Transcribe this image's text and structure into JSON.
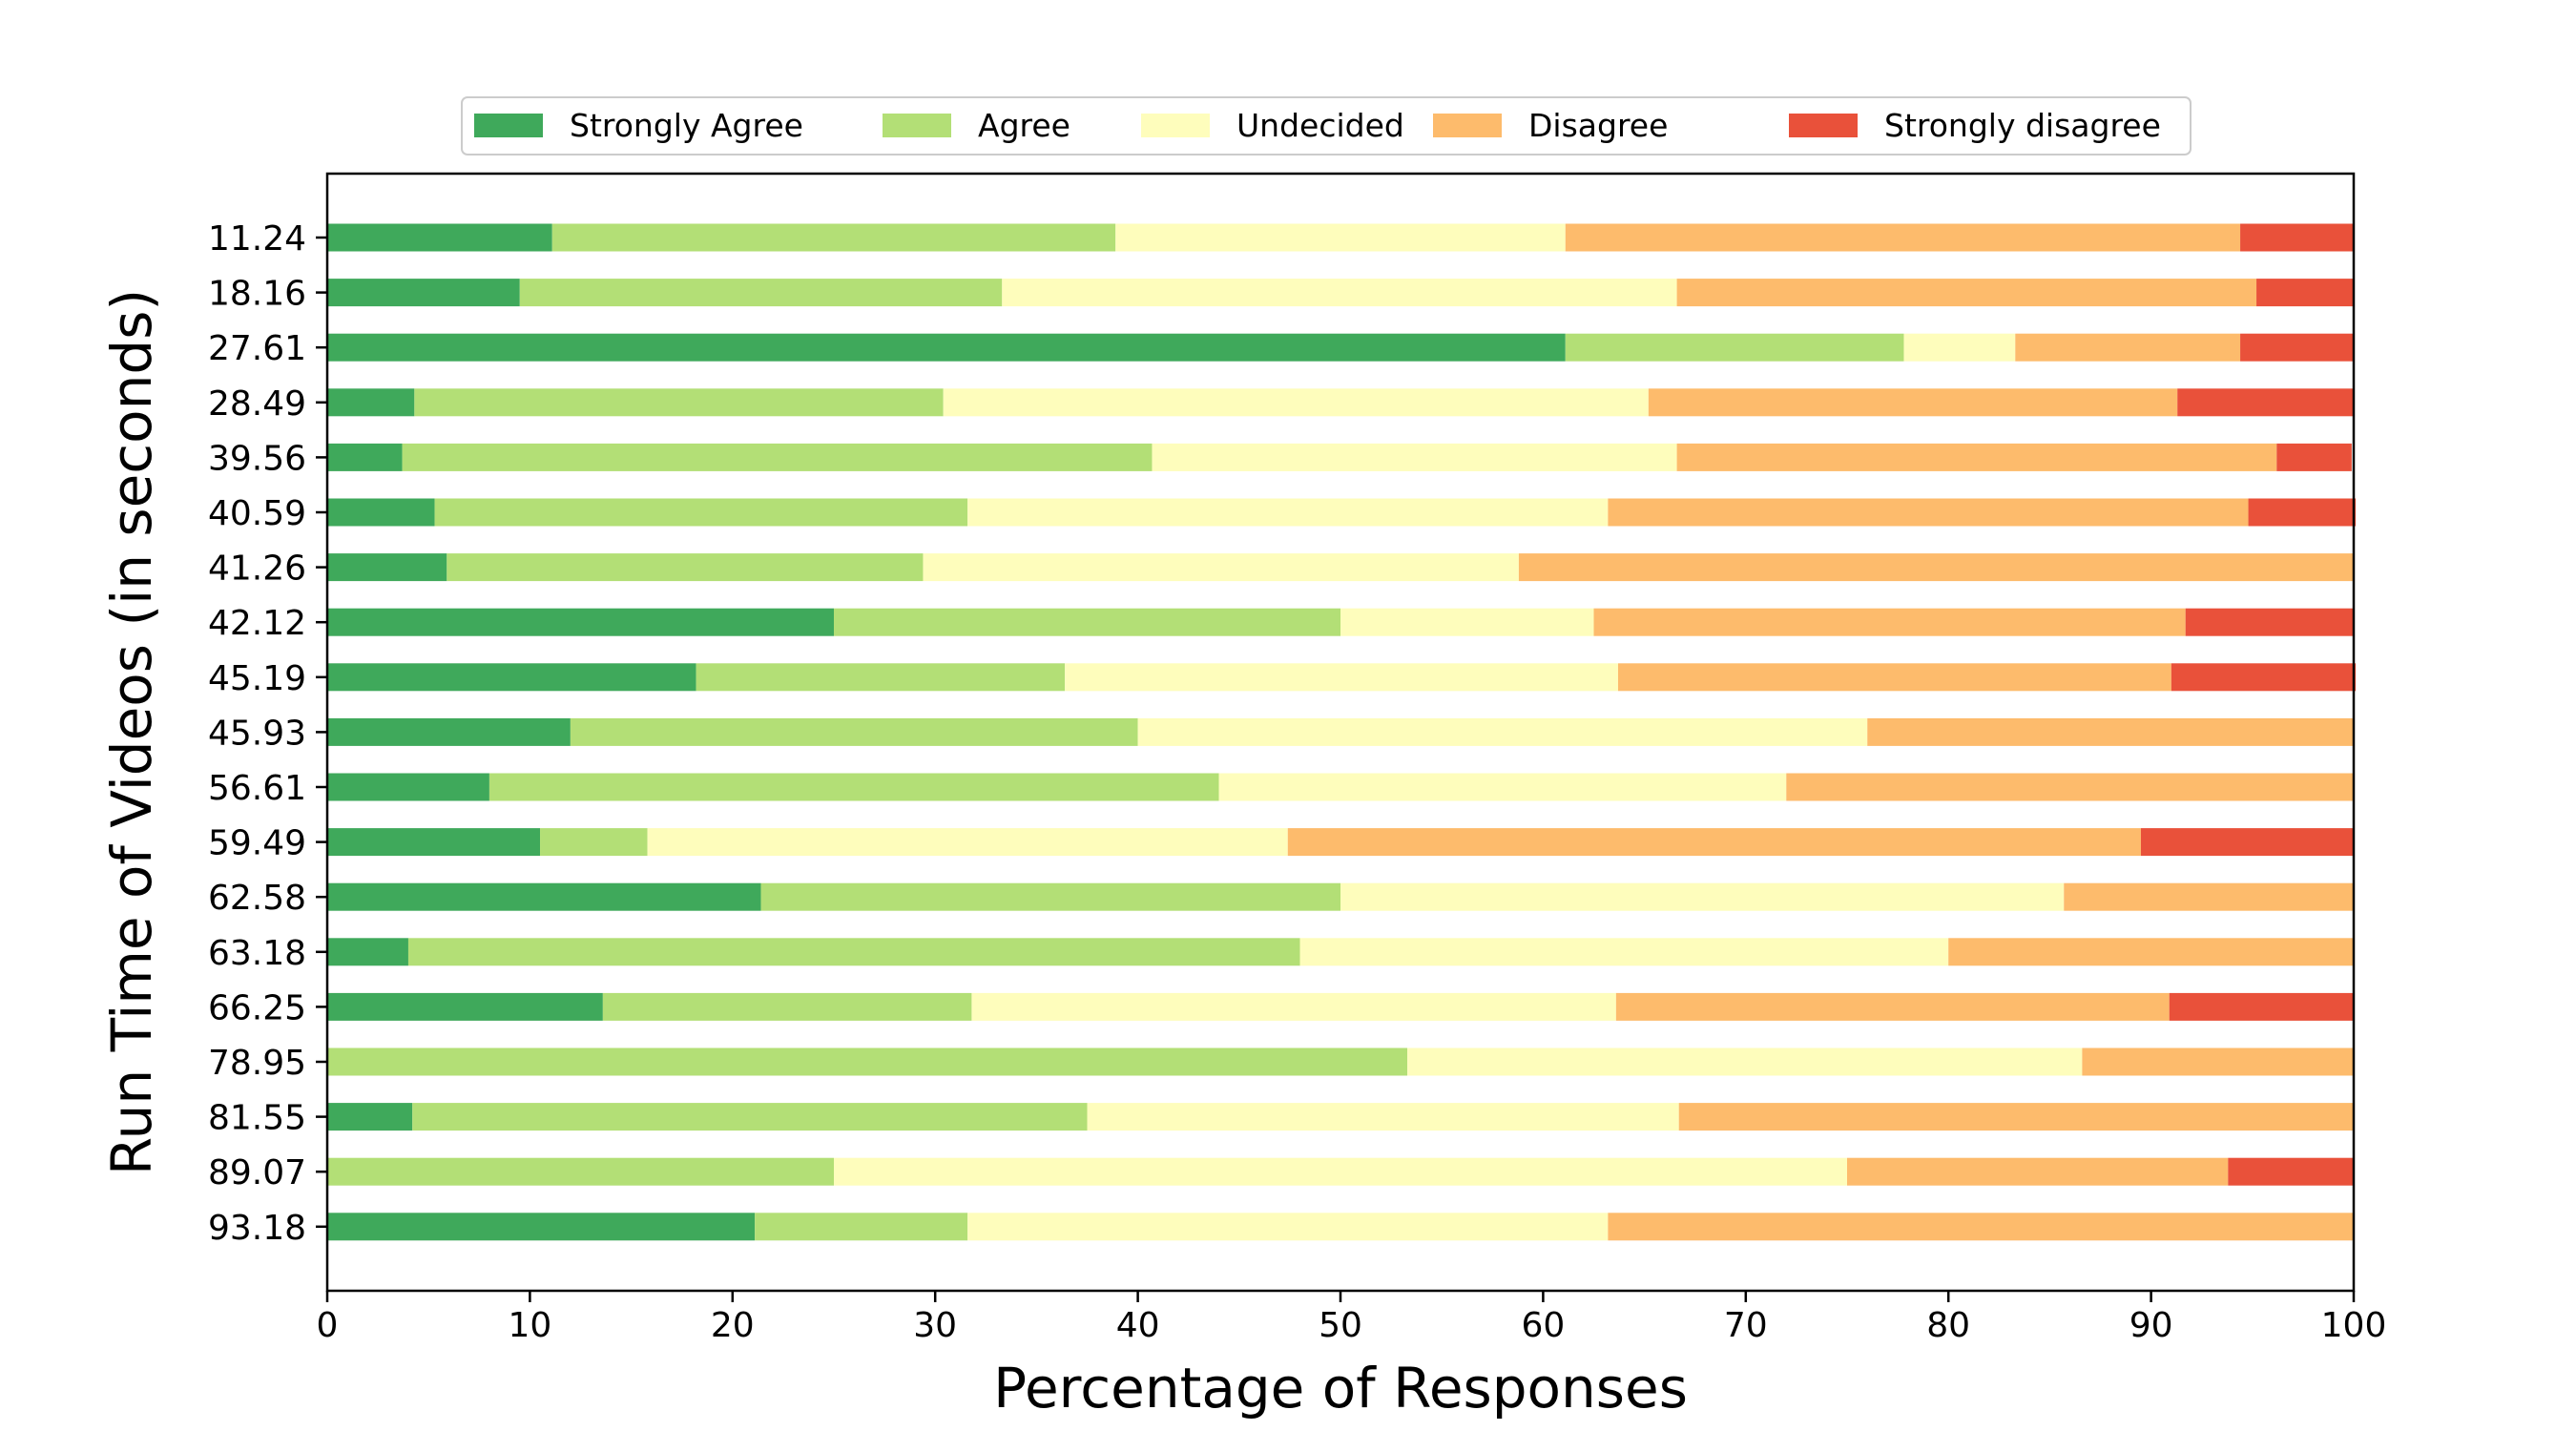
{
  "chart_data": {
    "type": "bar",
    "orientation": "horizontal",
    "stacked": true,
    "title": "",
    "xlabel": "Percentage of Responses",
    "ylabel": "Run Time of Videos (in seconds)",
    "xlim": [
      0,
      100
    ],
    "xticks": [
      "0",
      "10",
      "20",
      "30",
      "40",
      "50",
      "60",
      "70",
      "80",
      "90",
      "100"
    ],
    "grid": false,
    "legend_position": "top-center",
    "categories": [
      "11.24",
      "18.16",
      "27.61",
      "28.49",
      "39.56",
      "40.59",
      "41.26",
      "42.12",
      "45.19",
      "45.93",
      "56.61",
      "59.49",
      "62.58",
      "63.18",
      "66.25",
      "78.95",
      "81.55",
      "89.07",
      "93.18"
    ],
    "series": [
      {
        "name": "Strongly Agree",
        "color": "#3fa95b",
        "values": [
          11.1,
          9.5,
          61.1,
          4.3,
          3.7,
          5.3,
          5.9,
          25.0,
          18.2,
          12.0,
          8.0,
          10.5,
          21.4,
          4.0,
          13.6,
          0.0,
          4.2,
          0.0,
          21.1
        ]
      },
      {
        "name": "Agree",
        "color": "#b3df76",
        "values": [
          27.8,
          23.8,
          16.7,
          26.1,
          37.0,
          26.3,
          23.5,
          25.0,
          18.2,
          28.0,
          36.0,
          5.3,
          28.6,
          44.0,
          18.2,
          53.3,
          33.3,
          25.0,
          10.5
        ]
      },
      {
        "name": "Undecided",
        "color": "#fefdbc",
        "values": [
          22.2,
          33.3,
          5.5,
          34.8,
          25.9,
          31.6,
          29.4,
          12.5,
          27.3,
          36.0,
          28.0,
          31.6,
          35.7,
          32.0,
          31.8,
          33.3,
          29.2,
          50.0,
          31.6
        ]
      },
      {
        "name": "Disagree",
        "color": "#fdbb6c",
        "values": [
          33.3,
          28.6,
          11.1,
          26.1,
          29.6,
          31.6,
          41.2,
          29.2,
          27.3,
          24.0,
          28.0,
          42.1,
          14.3,
          20.0,
          27.3,
          13.4,
          33.3,
          18.8,
          36.8
        ]
      },
      {
        "name": "Strongly disagree",
        "color": "#e9513a",
        "values": [
          5.6,
          4.8,
          5.6,
          8.7,
          3.7,
          5.3,
          0.0,
          8.3,
          9.1,
          0.0,
          0.0,
          10.5,
          0.0,
          0.0,
          9.1,
          0.0,
          0.0,
          6.2,
          0.0
        ]
      }
    ]
  }
}
